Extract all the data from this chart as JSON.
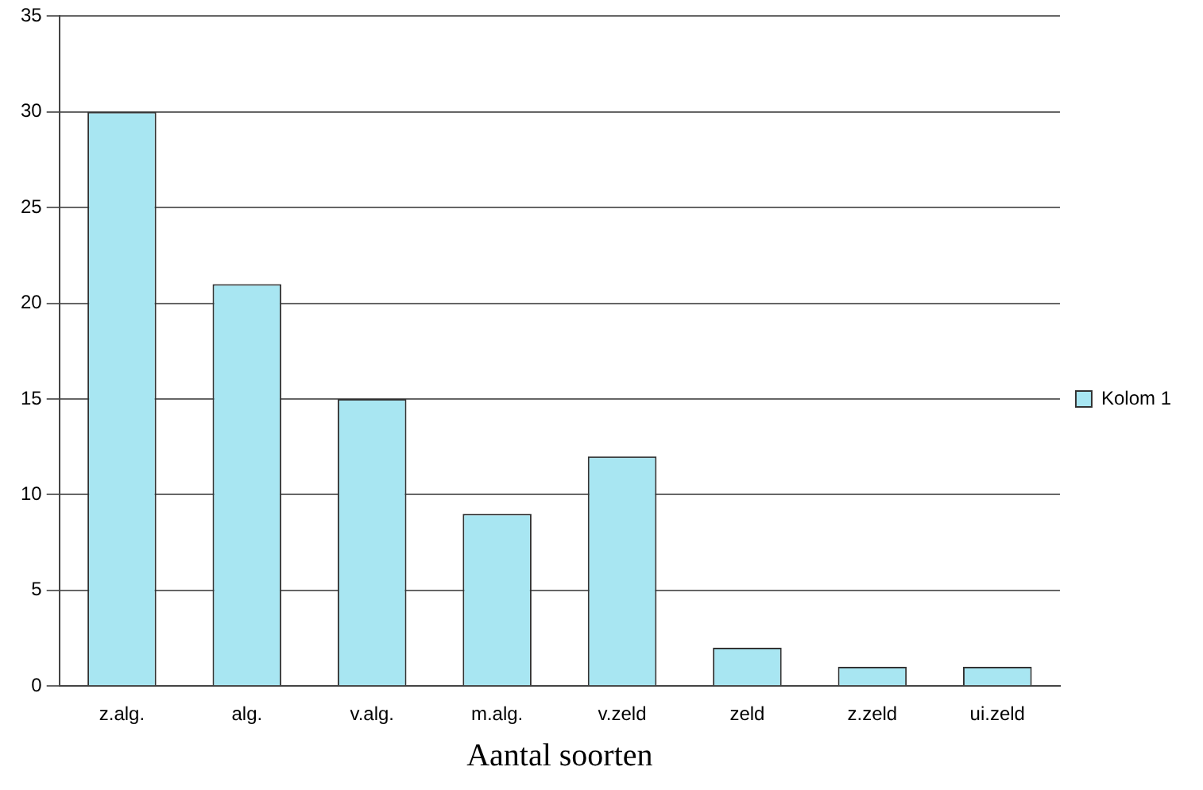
{
  "chart_data": {
    "type": "bar",
    "xlabel": "Aantal soorten",
    "categories": [
      "z.alg.",
      "alg.",
      "v.alg.",
      "m.alg.",
      "v.zeld",
      "zeld",
      "z.zeld",
      "ui.zeld"
    ],
    "series": [
      {
        "name": "Kolom 1",
        "color": "#a8e6f2",
        "values": [
          30,
          21,
          15,
          9,
          12,
          2,
          1,
          1
        ]
      }
    ],
    "ylim": [
      0,
      35
    ],
    "yticks": [
      0,
      5,
      10,
      15,
      20,
      25,
      30,
      35
    ],
    "grid": "y",
    "legend": "right"
  }
}
